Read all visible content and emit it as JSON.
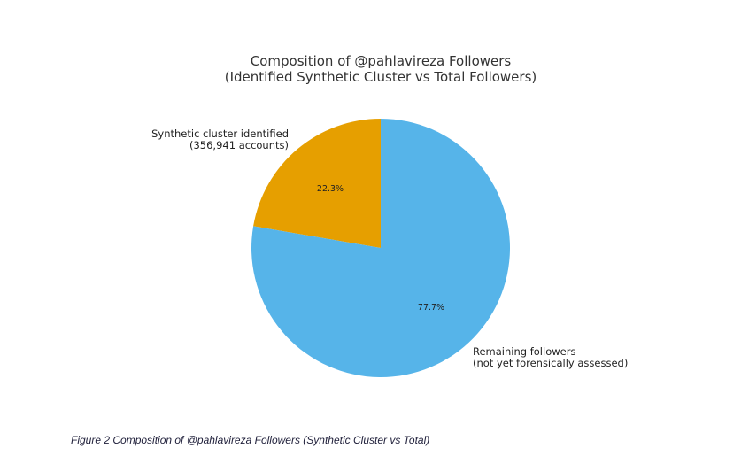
{
  "chart_data": {
    "type": "pie",
    "title_lines": [
      "Composition of @pahlavireza Followers",
      "(Identified Synthetic Cluster vs Total Followers)"
    ],
    "slices": [
      {
        "id": "synthetic",
        "label_lines": [
          "Synthetic cluster identified",
          "(356,941 accounts)"
        ],
        "value": 22.3,
        "pct_label": "22.3%",
        "color": "#E69F00"
      },
      {
        "id": "remaining",
        "label_lines": [
          "Remaining followers",
          "(not yet forensically assessed)"
        ],
        "value": 77.7,
        "pct_label": "77.7%",
        "color": "#56B4E9"
      }
    ],
    "start_angle_deg": 90,
    "direction": "counterclockwise"
  },
  "figure": {
    "caption": "Figure 2 Composition of @pahlavireza Followers (Synthetic Cluster vs Total)"
  }
}
